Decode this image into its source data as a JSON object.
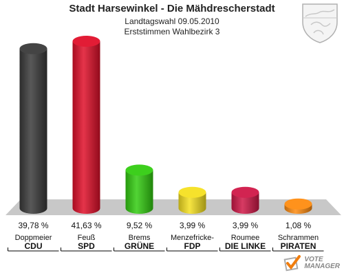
{
  "chart_data": {
    "type": "bar",
    "title": "Stadt Harsewinkel - Die Mähdrescherstadt",
    "subtitle_1": "Landtagswahl 09.05.2010",
    "subtitle_2": "Erststimmen Wahlbezirk 3",
    "categories": [
      {
        "candidate": "Doppmeier",
        "party": "CDU",
        "label": "39,78 %",
        "value": 39.78,
        "color": "#3a3a3a"
      },
      {
        "candidate": "Feuß",
        "party": "SPD",
        "label": "41,63 %",
        "value": 41.63,
        "color": "#e0102a"
      },
      {
        "candidate": "Brems",
        "party": "GRÜNE",
        "label": "9,52 %",
        "value": 9.52,
        "color": "#33cc11"
      },
      {
        "candidate": "Menzefricke-",
        "party": "FDP",
        "label": "3,99 %",
        "value": 3.99,
        "color": "#f5e021"
      },
      {
        "candidate": "Roumee",
        "party": "DIE LINKE",
        "label": "3,99 %",
        "value": 3.99,
        "color": "#d01848"
      },
      {
        "candidate": "Schrammen",
        "party": "PIRATEN",
        "label": "1,08 %",
        "value": 1.08,
        "color": "#ff8c10"
      }
    ],
    "ylim": [
      0,
      45
    ]
  },
  "logo": {
    "line1": "VOTE",
    "line2": "MANAGER"
  }
}
